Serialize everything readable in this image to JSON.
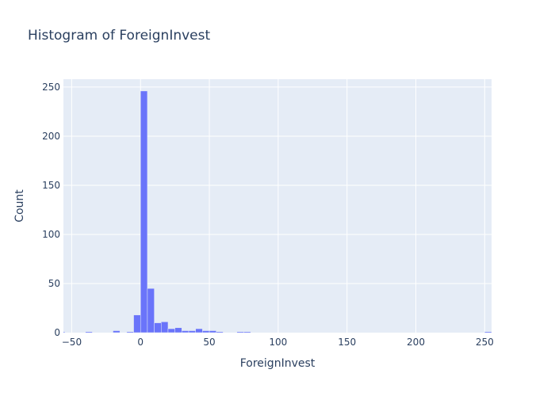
{
  "chart_data": {
    "type": "bar",
    "title": "Histogram of ForeignInvest",
    "xlabel": "ForeignInvest",
    "ylabel": "Count",
    "xlim": [
      -56,
      255
    ],
    "ylim": [
      0,
      258
    ],
    "x_ticks": [
      -50,
      0,
      50,
      100,
      150,
      200,
      250
    ],
    "y_ticks": [
      0,
      50,
      100,
      150,
      200,
      250
    ],
    "bin_width": 5,
    "bin_starts": [
      -60,
      -40,
      -20,
      -10,
      -5,
      0,
      5,
      10,
      15,
      20,
      25,
      30,
      35,
      40,
      45,
      50,
      55,
      70,
      75,
      250
    ],
    "values": [
      1,
      1,
      2,
      1,
      18,
      246,
      45,
      10,
      11,
      4,
      5,
      2,
      2,
      4,
      2,
      2,
      1,
      1,
      1,
      1
    ],
    "bar_color": "#636efa",
    "plot_background": "#e5ecf6",
    "grid": true
  }
}
